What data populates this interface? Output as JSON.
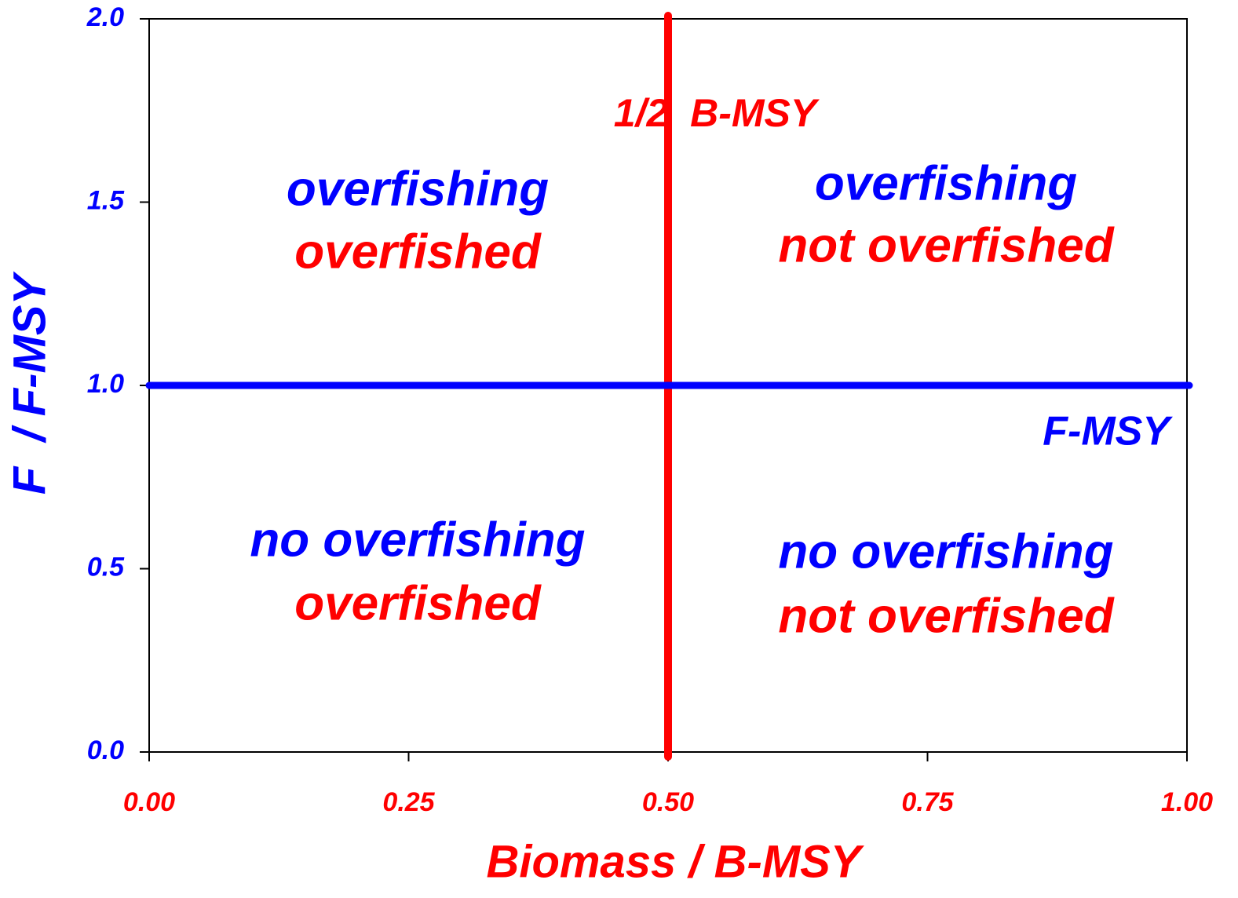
{
  "chart_data": {
    "type": "quadrant",
    "x_label": "Biomass / B-MSY",
    "y_label": "F  / F-MSY",
    "xlim": [
      0,
      1
    ],
    "ylim": [
      0,
      2
    ],
    "xticks": [
      {
        "value": 0,
        "label": "0.00"
      },
      {
        "value": 0.25,
        "label": "0.25"
      },
      {
        "value": 0.5,
        "label": "0.50"
      },
      {
        "value": 0.75,
        "label": "0.75"
      },
      {
        "value": 1,
        "label": "1.00"
      }
    ],
    "yticks": [
      {
        "value": 0,
        "label": "0.0"
      },
      {
        "value": 0.5,
        "label": "0.5"
      },
      {
        "value": 1,
        "label": "1.0"
      },
      {
        "value": 1.5,
        "label": "1.5"
      },
      {
        "value": 2,
        "label": "2.0"
      }
    ],
    "x_axis_color": "#ff0000",
    "y_axis_color": "#0000ff",
    "reference_lines": [
      {
        "axis": "x",
        "value": 0.5,
        "color": "#ff0000",
        "label": "1/2  B-MSY"
      },
      {
        "axis": "y",
        "value": 1,
        "color": "#0000ff",
        "label": "F-MSY"
      }
    ],
    "annotations": [
      {
        "italic": true,
        "lines": [
          {
            "text": "overfishing",
            "color": "#0000ff"
          },
          {
            "text": "overfished",
            "color": "#ff0000"
          }
        ]
      },
      {
        "italic": true,
        "lines": [
          {
            "text": "overfishing",
            "color": "#0000ff"
          },
          {
            "text": "not overfished",
            "color": "#ff0000"
          }
        ]
      },
      {
        "italic": true,
        "lines": [
          {
            "text": "no overfishing",
            "color": "#0000ff"
          },
          {
            "text": "overfished",
            "color": "#ff0000"
          }
        ]
      },
      {
        "italic": false,
        "lines": [
          {
            "text": "no overfishing",
            "color": "#0000ff"
          },
          {
            "text": "not overfished",
            "color": "#ff0000"
          }
        ]
      }
    ]
  }
}
